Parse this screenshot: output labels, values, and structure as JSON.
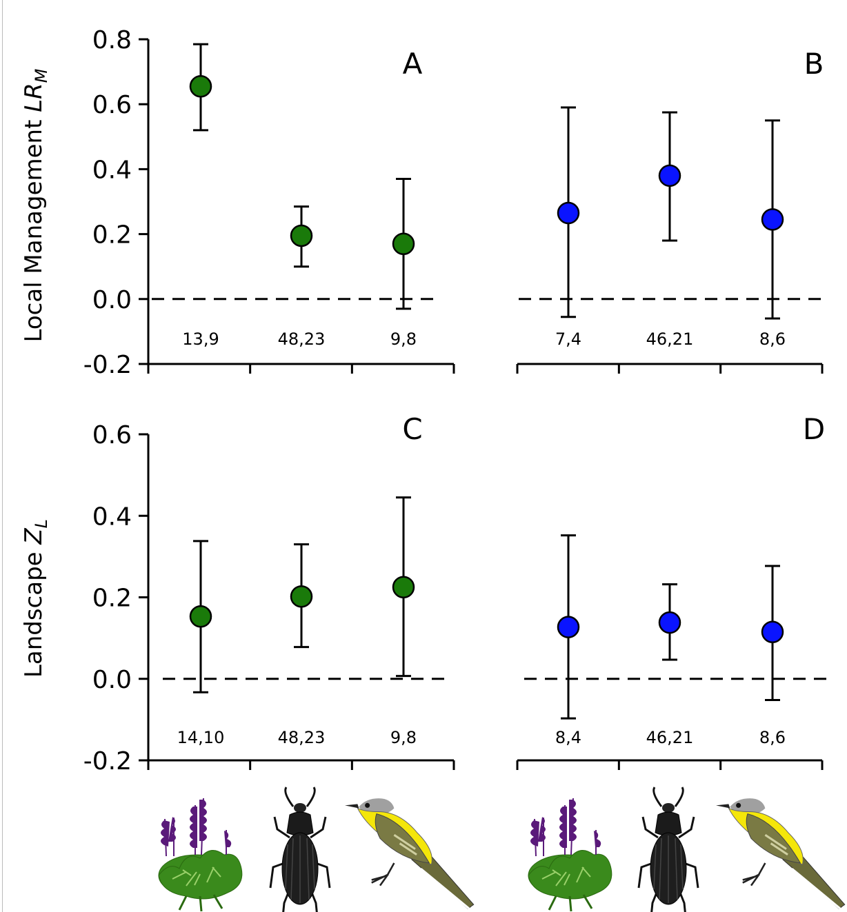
{
  "chart_data": [
    {
      "type": "scatter",
      "panel_label": "A",
      "categories": [
        "plant",
        "beetle",
        "bird"
      ],
      "estimates": [
        0.655,
        0.195,
        0.17
      ],
      "ci_low": [
        0.52,
        0.1,
        -0.03
      ],
      "ci_high": [
        0.785,
        0.285,
        0.37
      ],
      "n_labels": [
        "13,9",
        "48,23",
        "9,8"
      ],
      "ylim": [
        -0.2,
        0.8
      ],
      "yticks": [
        "0.8",
        "0.6",
        "0.4",
        "0.2",
        "0.0",
        "-0.2"
      ],
      "ylabel": "Local Management ",
      "ylabel_italic": "LR",
      "ylabel_sub": "M",
      "reference_line": 0.0,
      "color": "#1a7a0a"
    },
    {
      "type": "scatter",
      "panel_label": "B",
      "categories": [
        "plant",
        "beetle",
        "bird"
      ],
      "estimates": [
        0.265,
        0.38,
        0.245
      ],
      "ci_low": [
        -0.055,
        0.18,
        -0.06
      ],
      "ci_high": [
        0.59,
        0.575,
        0.55
      ],
      "n_labels": [
        "7,4",
        "46,21",
        "8,6"
      ],
      "ylim": [
        -0.2,
        0.8
      ],
      "reference_line": 0.0,
      "color": "#0a14ff"
    },
    {
      "type": "scatter",
      "panel_label": "C",
      "categories": [
        "plant",
        "beetle",
        "bird"
      ],
      "estimates": [
        0.153,
        0.202,
        0.225
      ],
      "ci_low": [
        -0.033,
        0.078,
        0.007
      ],
      "ci_high": [
        0.338,
        0.33,
        0.445
      ],
      "n_labels": [
        "14,10",
        "48,23",
        "9,8"
      ],
      "ylim": [
        -0.2,
        0.6
      ],
      "yticks": [
        "0.6",
        "0.4",
        "0.2",
        "0.0",
        "-0.2"
      ],
      "ylabel": "Landscape ",
      "ylabel_italic": "Z",
      "ylabel_sub": "L",
      "reference_line": 0.0,
      "color": "#1a7a0a"
    },
    {
      "type": "scatter",
      "panel_label": "D",
      "categories": [
        "plant",
        "beetle",
        "bird"
      ],
      "estimates": [
        0.127,
        0.138,
        0.115
      ],
      "ci_low": [
        -0.097,
        0.047,
        -0.052
      ],
      "ci_high": [
        0.352,
        0.232,
        0.277
      ],
      "n_labels": [
        "8,4",
        "46,21",
        "8,6"
      ],
      "ylim": [
        -0.2,
        0.6
      ],
      "reference_line": 0.0,
      "color": "#0a14ff"
    }
  ],
  "icons": [
    "plant-icon",
    "beetle-icon",
    "bird-icon"
  ]
}
